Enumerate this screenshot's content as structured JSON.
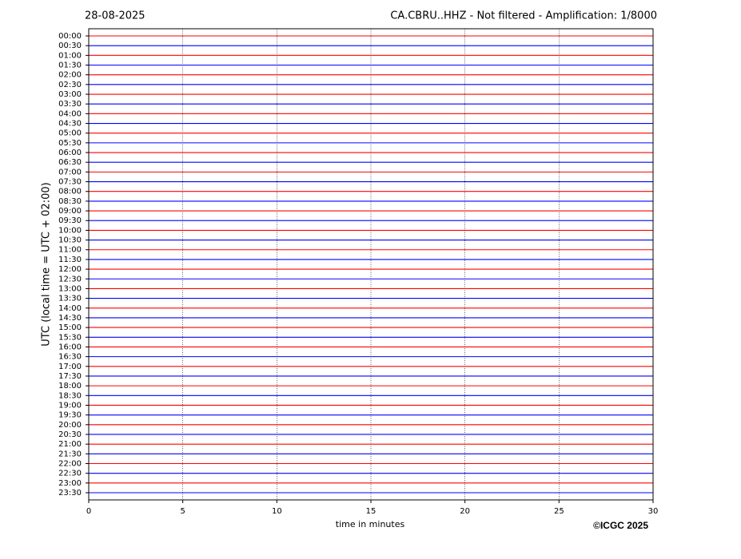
{
  "chart_data": {
    "type": "helicorder",
    "date": "28-08-2025",
    "title": "CA.CBRU..HHZ - Not filtered - Amplification: 1/8000",
    "ylabel": "UTC (local time = UTC + 02:00)",
    "xlabel": "time in minutes",
    "credit": "©ICGC 2025",
    "categories": [
      "00:00",
      "00:30",
      "01:00",
      "01:30",
      "02:00",
      "02:30",
      "03:00",
      "03:30",
      "04:00",
      "04:30",
      "05:00",
      "05:30",
      "06:00",
      "06:30",
      "07:00",
      "07:30",
      "08:00",
      "08:30",
      "09:00",
      "09:30",
      "10:00",
      "10:30",
      "11:00",
      "11:30",
      "12:00",
      "12:30",
      "13:00",
      "13:30",
      "14:00",
      "14:30",
      "15:00",
      "15:30",
      "16:00",
      "16:30",
      "17:00",
      "17:30",
      "18:00",
      "18:30",
      "19:00",
      "19:30",
      "20:00",
      "20:30",
      "21:00",
      "21:30",
      "22:00",
      "22:30",
      "23:00",
      "23:30"
    ],
    "colors": [
      "#ff0000",
      "#0000ff"
    ],
    "xlim": [
      0,
      30
    ],
    "xticks": [
      0,
      5,
      10,
      15,
      20,
      25,
      30
    ],
    "grid": true
  }
}
